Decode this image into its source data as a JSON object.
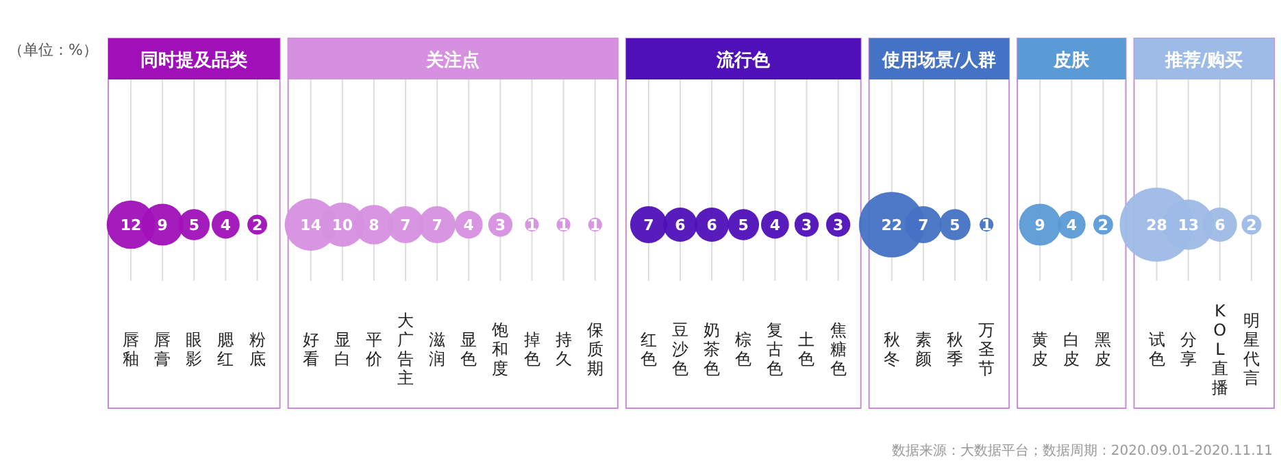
{
  "chart_data": [
    {
      "type": "other",
      "title": "同时提及品类",
      "categories": [
        "唇釉",
        "唇膏",
        "眼影",
        "腮红",
        "粉底"
      ],
      "values": [
        12,
        9,
        5,
        4,
        2
      ],
      "color": "#a010b8",
      "data_labels": true,
      "annotations": [
        "（单位：%）"
      ]
    },
    {
      "type": "other",
      "title": "关注点",
      "categories": [
        "好看",
        "显白",
        "平价",
        "大广告主",
        "滋润",
        "显色",
        "饱和度",
        "掉色",
        "持久",
        "保质期"
      ],
      "values": [
        14,
        10,
        8,
        7,
        7,
        4,
        3,
        1,
        1,
        1
      ],
      "color": "#d690e0",
      "data_labels": true
    },
    {
      "type": "other",
      "title": "流行色",
      "categories": [
        "红色",
        "豆沙色",
        "奶茶色",
        "棕色",
        "复古色",
        "土色",
        "焦糖色"
      ],
      "values": [
        7,
        6,
        6,
        5,
        4,
        3,
        3
      ],
      "color": "#5010b8",
      "data_labels": true
    },
    {
      "type": "other",
      "title": "使用场景/人群",
      "categories": [
        "秋冬",
        "素颜",
        "秋季",
        "万圣节"
      ],
      "values": [
        22,
        7,
        5,
        1
      ],
      "color": "#4472c4",
      "data_labels": true
    },
    {
      "type": "other",
      "title": "皮肤",
      "categories": [
        "黄皮",
        "白皮",
        "黑皮"
      ],
      "values": [
        9,
        4,
        2
      ],
      "color": "#5b9bd5",
      "data_labels": true
    },
    {
      "type": "other",
      "title": "推荐/购买",
      "categories": [
        "试色",
        "分享",
        "KOL直播",
        "明星代言"
      ],
      "values": [
        28,
        13,
        6,
        2
      ],
      "color": "#9dbbe6",
      "data_labels": true,
      "annotations": [
        "数据来源：大数据平台；数据周期：2020.09.01-2020.11.11"
      ]
    }
  ]
}
